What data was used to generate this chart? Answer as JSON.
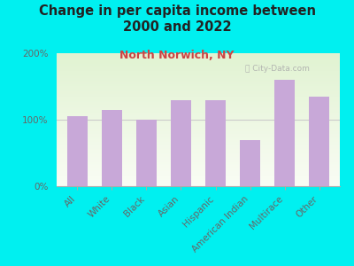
{
  "title": "Change in per capita income between\n2000 and 2022",
  "subtitle": "North Norwich, NY",
  "categories": [
    "All",
    "White",
    "Black",
    "Asian",
    "Hispanic",
    "American Indian",
    "Multirace",
    "Other"
  ],
  "values": [
    105,
    115,
    100,
    130,
    130,
    70,
    160,
    135
  ],
  "bar_color": "#c8a8d8",
  "background_outer": "#00f0f0",
  "title_color": "#222222",
  "subtitle_color": "#cc4444",
  "axis_label_color": "#666666",
  "tick_label_color": "#666666",
  "ylim": [
    0,
    200
  ],
  "yticks": [
    0,
    100,
    200
  ],
  "ytick_labels": [
    "0%",
    "100%",
    "200%"
  ],
  "watermark": "ⓘ City-Data.com",
  "title_fontsize": 10.5,
  "subtitle_fontsize": 9,
  "tick_fontsize": 7.5
}
